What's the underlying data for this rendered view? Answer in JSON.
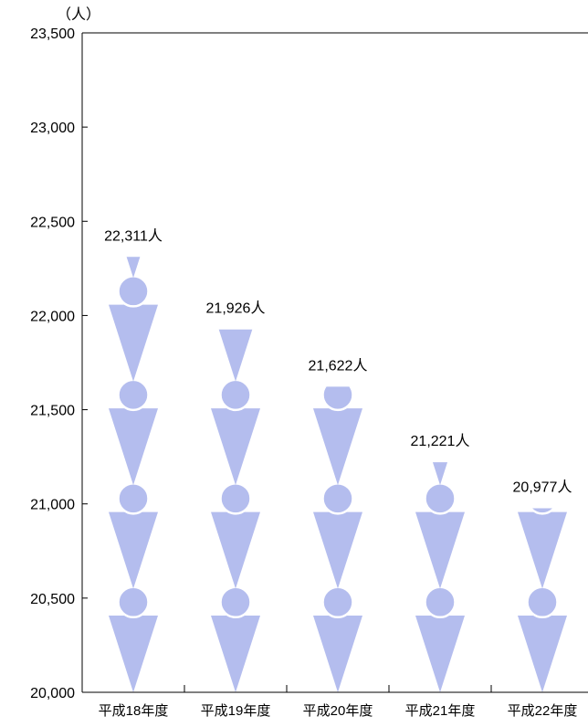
{
  "chart_data": {
    "type": "bar",
    "unit_label": "（人）",
    "categories": [
      "平成18年度",
      "平成19年度",
      "平成20年度",
      "平成21年度",
      "平成22年度"
    ],
    "values": [
      22311,
      21926,
      21622,
      21221,
      20977
    ],
    "data_labels": [
      "22,311人",
      "21,926人",
      "21,622人",
      "21,221人",
      "20,977人"
    ],
    "ylim": [
      20000,
      23500
    ],
    "yticks": [
      20000,
      20500,
      21000,
      21500,
      22000,
      22500,
      23000,
      23500
    ],
    "ytick_labels": [
      "20,000",
      "20,500",
      "21,000",
      "21,500",
      "22,000",
      "22,500",
      "23,000",
      "23,500"
    ],
    "xlabel": "",
    "ylabel": "",
    "grid": false,
    "pictogram_unit": 550,
    "bar_color": "#b4bdee",
    "axis_color": "#000000"
  }
}
